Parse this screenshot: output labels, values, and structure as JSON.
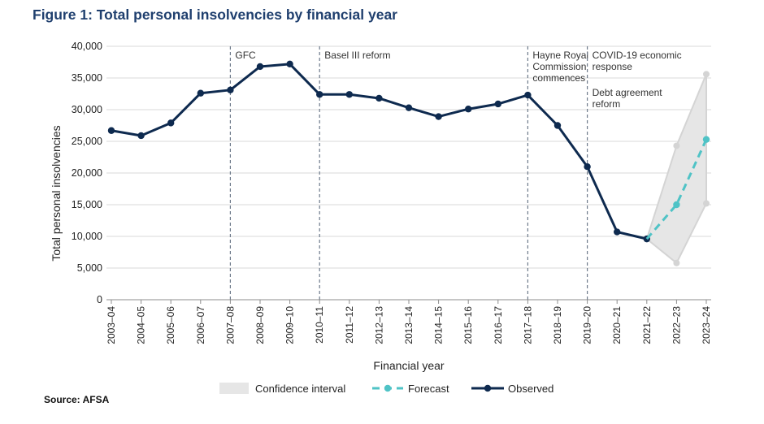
{
  "figure_title": "Figure 1: Total personal insolvencies by financial year",
  "source": "Source: AFSA",
  "chart_data": {
    "type": "line",
    "title": "Figure 1: Total personal insolvencies by financial year",
    "xlabel": "Financial year",
    "ylabel": "Total personal insolvencies",
    "ylim": [
      0,
      40000
    ],
    "yticks": [
      0,
      5000,
      10000,
      15000,
      20000,
      25000,
      30000,
      35000,
      40000
    ],
    "ytick_labels": [
      "0",
      "5,000",
      "10,000",
      "15,000",
      "20,000",
      "25,000",
      "30,000",
      "35,000",
      "40,000"
    ],
    "grid": "horizontal",
    "legend_position": "bottom",
    "categories": [
      "2003–04",
      "2004–05",
      "2005–06",
      "2006–07",
      "2007–08",
      "2008–09",
      "2009–10",
      "2010–11",
      "2011–12",
      "2012–13",
      "2013–14",
      "2014–15",
      "2015–16",
      "2016–17",
      "2017–18",
      "2018–19",
      "2019–20",
      "2020–21",
      "2021–22",
      "2022–23",
      "2023–24"
    ],
    "series": [
      {
        "name": "Observed",
        "color": "#0e2a4f",
        "values": [
          26700,
          25900,
          27900,
          32600,
          33100,
          36800,
          37200,
          32400,
          32400,
          31800,
          30300,
          28900,
          30100,
          30900,
          32300,
          27500,
          21000,
          10700,
          9600,
          null,
          null
        ]
      },
      {
        "name": "Forecast",
        "color": "#4fc3c6",
        "values": [
          null,
          null,
          null,
          null,
          null,
          null,
          null,
          null,
          null,
          null,
          null,
          null,
          null,
          null,
          null,
          null,
          null,
          null,
          9600,
          15000,
          25300
        ]
      }
    ],
    "confidence_interval": {
      "name": "Confidence interval",
      "color": "#e6e6e6",
      "lower": [
        null,
        null,
        null,
        null,
        null,
        null,
        null,
        null,
        null,
        null,
        null,
        null,
        null,
        null,
        null,
        null,
        null,
        null,
        9600,
        5800,
        15200
      ],
      "upper": [
        null,
        null,
        null,
        null,
        null,
        null,
        null,
        null,
        null,
        null,
        null,
        null,
        null,
        null,
        null,
        null,
        null,
        null,
        9600,
        24300,
        35600
      ]
    },
    "annotations": [
      {
        "category": "2007–08",
        "lines": [
          "GFC"
        ]
      },
      {
        "category": "2010–11",
        "lines": [
          "Basel III reform"
        ]
      },
      {
        "category": "2017–18",
        "lines": [
          "Hayne Royal",
          "Commission",
          "commences"
        ]
      },
      {
        "category": "2019–20",
        "lines": [
          "COVID-19 economic",
          "response"
        ]
      },
      {
        "category": "2019–20",
        "lines": [
          "Debt agreement",
          "reform"
        ]
      }
    ]
  }
}
